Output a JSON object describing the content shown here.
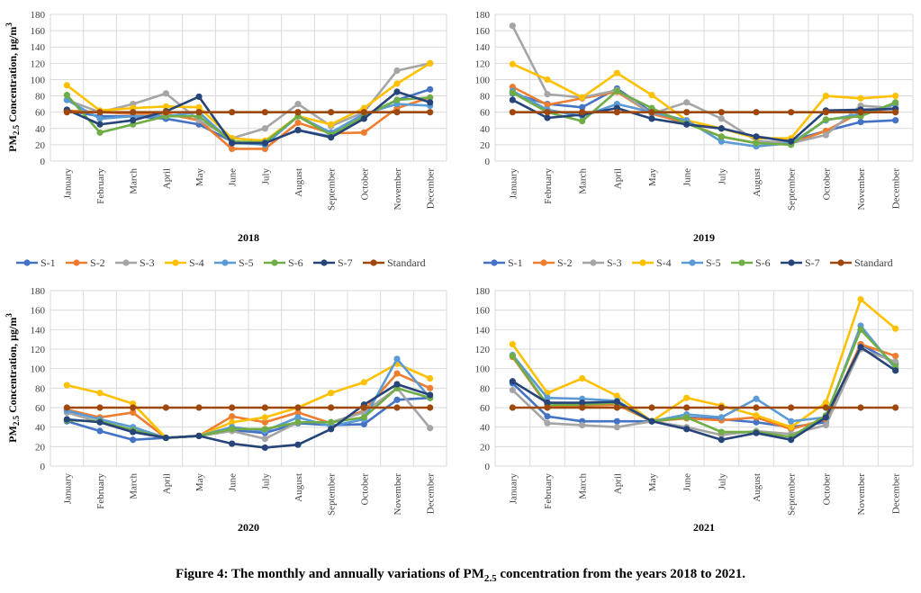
{
  "caption": {
    "prefix": "Figure 4: The monthly and annually variations of PM",
    "sub": "2.5",
    "suffix": " concentration from the years 2018 to 2021."
  },
  "colors": {
    "S-1": "#4472C4",
    "S-2": "#ED7D31",
    "S-3": "#A5A5A5",
    "S-4": "#FFC000",
    "S-5": "#5B9BD5",
    "S-6": "#70AD47",
    "S-7": "#264478",
    "Standard": "#9E480E"
  },
  "chart_data": [
    {
      "type": "line",
      "title": "2018",
      "ylabel_main": "PM",
      "ylabel_sub": "2.5",
      "ylabel_rest": " Concentration, µg/m",
      "ylabel_sup": "3",
      "ylim": [
        0,
        180
      ],
      "yticks": [
        0,
        20,
        40,
        60,
        80,
        100,
        120,
        140,
        160,
        180
      ],
      "grid": true,
      "legend": "below",
      "categories": [
        "January",
        "February",
        "March",
        "April",
        "May",
        "June",
        "July",
        "August",
        "September",
        "October",
        "November",
        "December"
      ],
      "series": [
        {
          "name": "S-1",
          "values": [
            62,
            55,
            55,
            52,
            45,
            24,
            22,
            38,
            30,
            55,
            75,
            88
          ]
        },
        {
          "name": "S-2",
          "values": [
            62,
            60,
            58,
            58,
            50,
            15,
            15,
            47,
            34,
            35,
            65,
            78
          ]
        },
        {
          "name": "S-3",
          "values": [
            75,
            60,
            70,
            83,
            50,
            28,
            40,
            70,
            43,
            60,
            111,
            120
          ]
        },
        {
          "name": "S-4",
          "values": [
            93,
            62,
            65,
            67,
            66,
            28,
            25,
            55,
            45,
            65,
            95,
            120
          ]
        },
        {
          "name": "S-5",
          "values": [
            75,
            52,
            55,
            55,
            60,
            23,
            20,
            55,
            35,
            58,
            70,
            68
          ]
        },
        {
          "name": "S-6",
          "values": [
            81,
            35,
            45,
            55,
            55,
            24,
            23,
            55,
            32,
            55,
            75,
            78
          ]
        },
        {
          "name": "S-7",
          "values": [
            63,
            45,
            50,
            61,
            79,
            22,
            22,
            38,
            29,
            52,
            85,
            72
          ]
        },
        {
          "name": "Standard",
          "values": [
            60,
            60,
            60,
            60,
            60,
            60,
            60,
            60,
            60,
            60,
            60,
            60
          ]
        }
      ]
    },
    {
      "type": "line",
      "title": "2019",
      "ylim": [
        0,
        180
      ],
      "yticks": [
        0,
        20,
        40,
        60,
        80,
        100,
        120,
        140,
        160,
        180
      ],
      "grid": true,
      "legend": "below",
      "categories": [
        "January",
        "February",
        "March",
        "April",
        "May",
        "June",
        "July",
        "August",
        "September",
        "October",
        "November",
        "December"
      ],
      "series": [
        {
          "name": "S-1",
          "values": [
            83,
            70,
            66,
            89,
            60,
            45,
            40,
            30,
            25,
            37,
            48,
            50
          ]
        },
        {
          "name": "S-2",
          "values": [
            91,
            69,
            77,
            85,
            58,
            47,
            30,
            22,
            22,
            37,
            60,
            65
          ]
        },
        {
          "name": "S-3",
          "values": [
            166,
            82,
            78,
            87,
            58,
            72,
            52,
            25,
            22,
            32,
            68,
            65
          ]
        },
        {
          "name": "S-4",
          "values": [
            119,
            100,
            78,
            108,
            81,
            50,
            40,
            28,
            28,
            80,
            77,
            80
          ]
        },
        {
          "name": "S-5",
          "values": [
            86,
            63,
            55,
            70,
            60,
            50,
            24,
            18,
            22,
            50,
            58,
            70
          ]
        },
        {
          "name": "S-6",
          "values": [
            84,
            60,
            49,
            86,
            65,
            46,
            30,
            22,
            20,
            51,
            55,
            72
          ]
        },
        {
          "name": "S-7",
          "values": [
            75,
            53,
            57,
            65,
            52,
            45,
            40,
            30,
            24,
            62,
            63,
            64
          ]
        },
        {
          "name": "Standard",
          "values": [
            60,
            60,
            60,
            60,
            60,
            60,
            60,
            60,
            60,
            60,
            60,
            60
          ]
        }
      ]
    },
    {
      "type": "line",
      "title": "2020",
      "ylabel_main": "PM",
      "ylabel_sub": "2.5",
      "ylabel_rest": " Concentration, µg/m",
      "ylabel_sup": "3",
      "ylim": [
        0,
        180
      ],
      "yticks": [
        0,
        20,
        40,
        60,
        80,
        100,
        120,
        140,
        160,
        180
      ],
      "grid": true,
      "legend": "above",
      "categories": [
        "January",
        "February",
        "March",
        "April",
        "May",
        "June",
        "July",
        "August",
        "September",
        "October",
        "November",
        "December"
      ],
      "series": [
        {
          "name": "S-1",
          "values": [
            46,
            36,
            27,
            29,
            31,
            37,
            34,
            44,
            42,
            43,
            68,
            70
          ]
        },
        {
          "name": "S-2",
          "values": [
            58,
            50,
            55,
            29,
            31,
            51,
            45,
            55,
            44,
            57,
            95,
            80
          ]
        },
        {
          "name": "S-3",
          "values": [
            55,
            45,
            35,
            29,
            31,
            36,
            28,
            45,
            45,
            55,
            80,
            39
          ]
        },
        {
          "name": "S-4",
          "values": [
            83,
            75,
            64,
            29,
            31,
            45,
            50,
            60,
            75,
            86,
            105,
            90
          ]
        },
        {
          "name": "S-5",
          "values": [
            57,
            48,
            40,
            29,
            31,
            40,
            36,
            50,
            41,
            48,
            110,
            70
          ]
        },
        {
          "name": "S-6",
          "values": [
            47,
            46,
            37,
            29,
            31,
            38,
            38,
            45,
            45,
            50,
            80,
            70
          ]
        },
        {
          "name": "S-7",
          "values": [
            48,
            45,
            35,
            29,
            31,
            23,
            19,
            22,
            38,
            63,
            84,
            73
          ]
        },
        {
          "name": "Standard",
          "values": [
            60,
            60,
            60,
            60,
            60,
            60,
            60,
            60,
            60,
            60,
            60,
            60
          ]
        }
      ]
    },
    {
      "type": "line",
      "title": "2021",
      "ylim": [
        0,
        180
      ],
      "yticks": [
        0,
        20,
        40,
        60,
        80,
        100,
        120,
        140,
        160,
        180
      ],
      "grid": true,
      "legend": "above",
      "categories": [
        "January",
        "February",
        "March",
        "April",
        "May",
        "June",
        "July",
        "August",
        "September",
        "October",
        "November",
        "December"
      ],
      "series": [
        {
          "name": "S-1",
          "values": [
            85,
            51,
            46,
            46,
            46,
            50,
            48,
            45,
            40,
            45,
            125,
            105
          ]
        },
        {
          "name": "S-2",
          "values": [
            112,
            62,
            62,
            63,
            46,
            49,
            47,
            50,
            38,
            48,
            125,
            113
          ]
        },
        {
          "name": "S-3",
          "values": [
            78,
            44,
            42,
            40,
            46,
            40,
            32,
            36,
            33,
            42,
            120,
            107
          ]
        },
        {
          "name": "S-4",
          "values": [
            125,
            75,
            90,
            72,
            46,
            70,
            62,
            52,
            40,
            65,
            171,
            141
          ]
        },
        {
          "name": "S-5",
          "values": [
            114,
            70,
            69,
            67,
            46,
            53,
            50,
            69,
            46,
            50,
            144,
            100
          ]
        },
        {
          "name": "S-6",
          "values": [
            113,
            63,
            63,
            65,
            46,
            50,
            35,
            35,
            30,
            52,
            140,
            102
          ]
        },
        {
          "name": "S-7",
          "values": [
            87,
            65,
            65,
            66,
            46,
            38,
            27,
            34,
            27,
            50,
            122,
            98
          ]
        },
        {
          "name": "Standard",
          "values": [
            60,
            60,
            60,
            60,
            60,
            60,
            60,
            60,
            60,
            60,
            60,
            60
          ]
        }
      ]
    }
  ],
  "legends": [
    {
      "items": [
        "S-1",
        "S-2",
        "S-3",
        "S-4",
        "S-5",
        "S-6",
        "S-7",
        "Standard"
      ]
    },
    {
      "items": [
        "S-1",
        "S-2",
        "S-3",
        "S-4",
        "S-5",
        "S-6",
        "S-7",
        "Standard"
      ]
    }
  ]
}
